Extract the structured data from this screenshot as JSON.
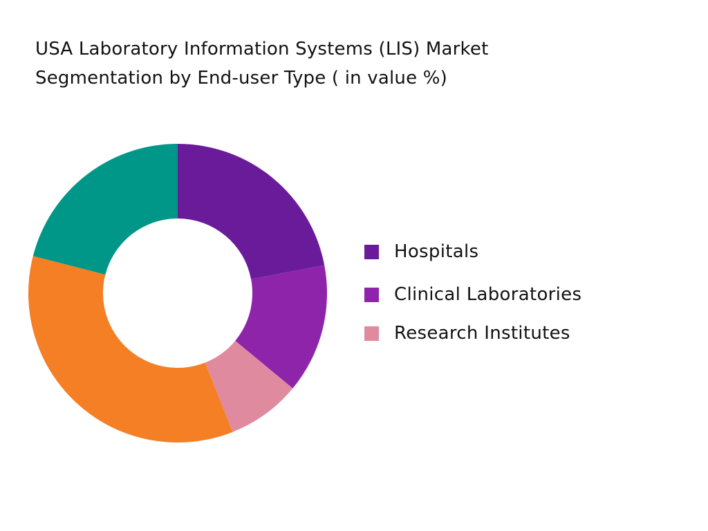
{
  "chart_data": {
    "type": "donut",
    "title": "USA Laboratory Information Systems (LIS) Market Segmentation by End-user Type ( in value %)",
    "title_lines": [
      "USA Laboratory Information Systems (LIS) Market",
      "Segmentation by End-user Type ( in value %)"
    ],
    "legend_position": "right",
    "slices": [
      {
        "name": "Hospitals",
        "value": 22,
        "color": "#6a1b9a",
        "in_legend": true
      },
      {
        "name": "Clinical Laboratories",
        "value": 14,
        "color": "#8e24aa",
        "in_legend": true
      },
      {
        "name": "Research Institutes",
        "value": 8,
        "color": "#e08aa0",
        "in_legend": true
      },
      {
        "name": "",
        "value": 35,
        "color": "#f57f25",
        "in_legend": false
      },
      {
        "name": "",
        "value": 21,
        "color": "#009688",
        "in_legend": false
      }
    ],
    "value_unit": "%",
    "data_labels_shown": false
  }
}
